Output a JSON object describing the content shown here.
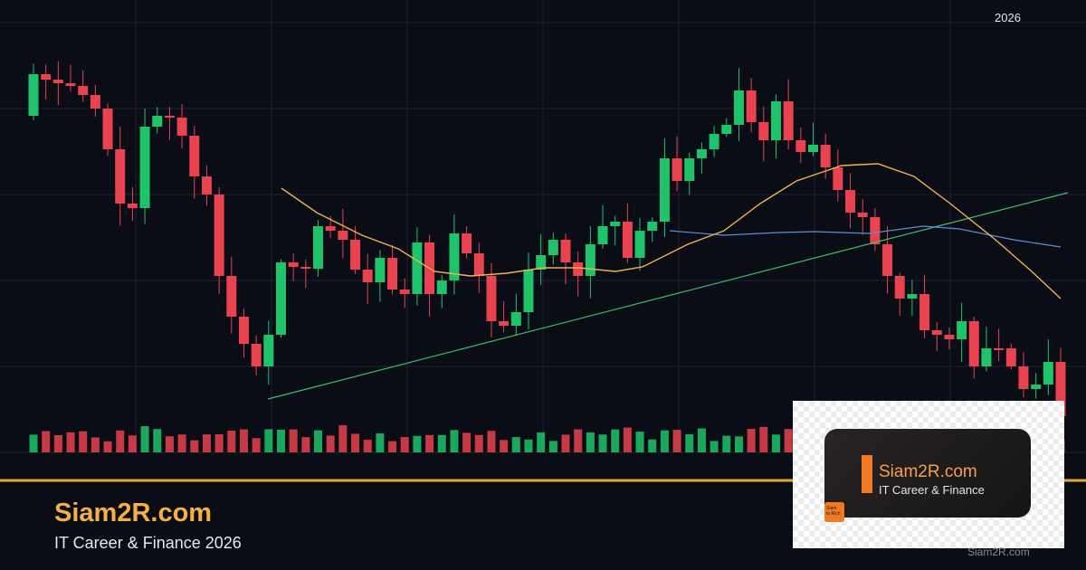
{
  "header": {
    "year": "2026"
  },
  "brand": {
    "title": "Siam2R.com",
    "subtitle": "IT Career & Finance 2026"
  },
  "card": {
    "title": "Siam2R.com",
    "subtitle": "IT Career & Finance",
    "logo_lines": [
      "Siam",
      "to Rich"
    ]
  },
  "watermark": "Siam2R.com"
}
